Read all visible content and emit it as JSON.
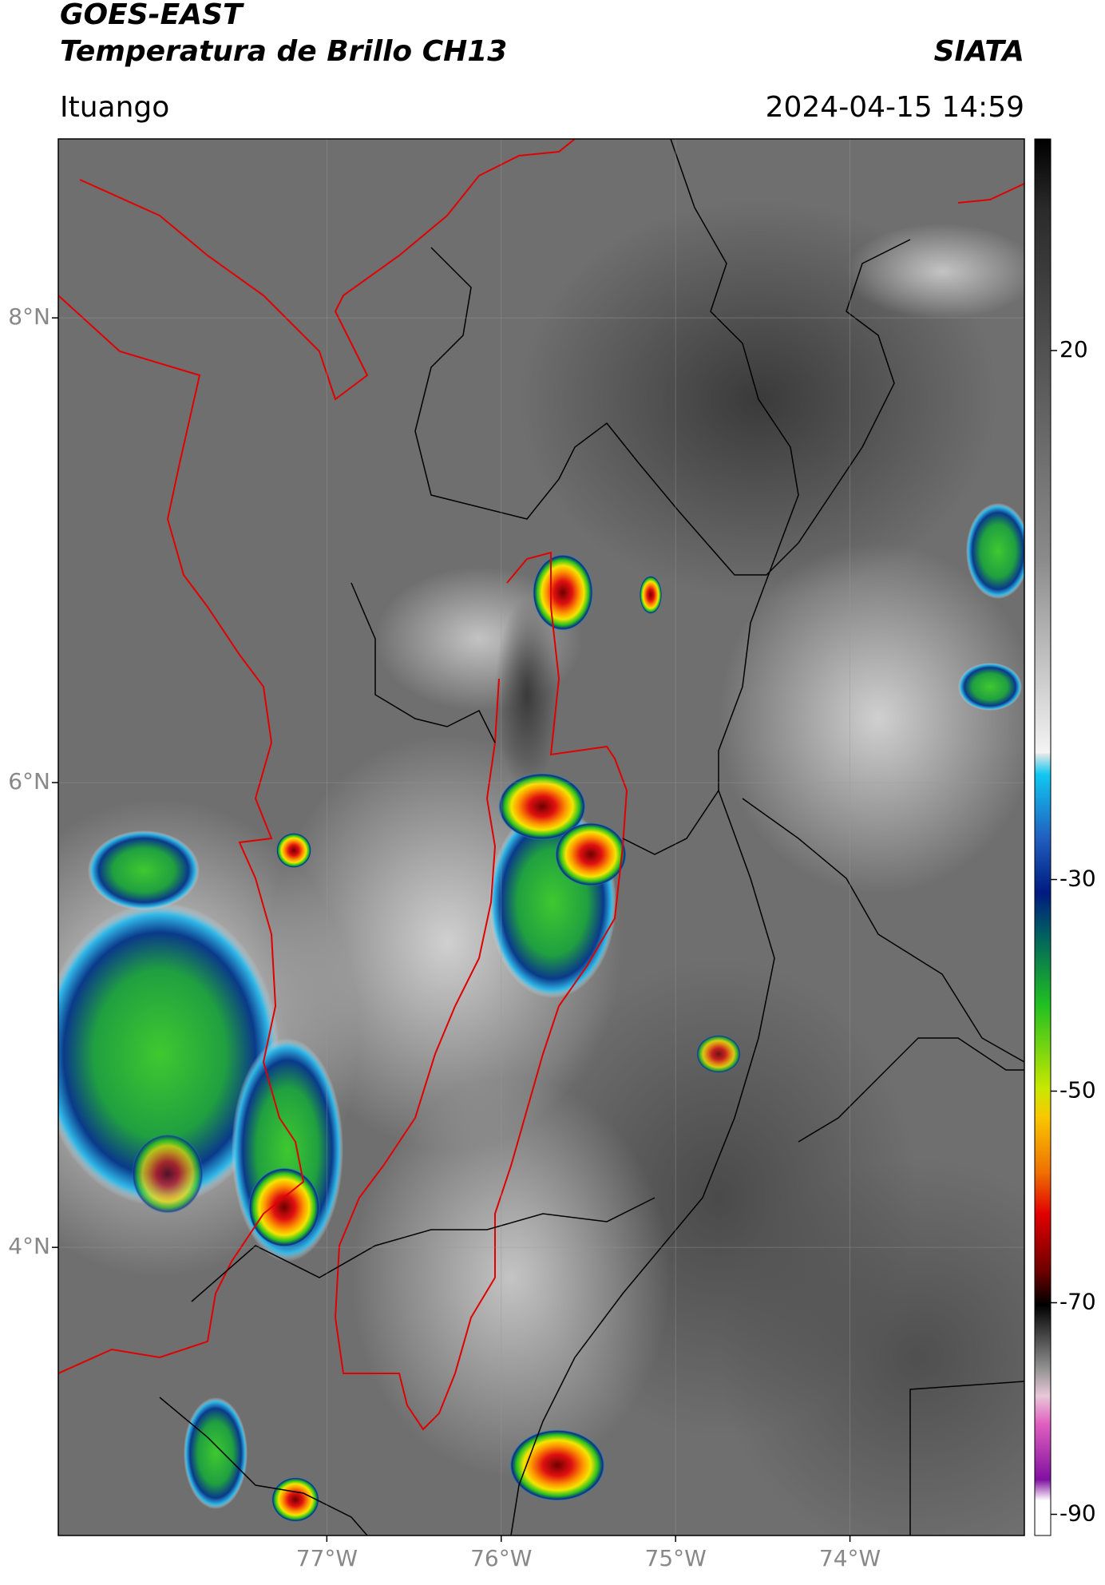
{
  "header": {
    "title": "GOES-EAST",
    "subtitle": "Temperatura de Brillo CH13",
    "source": "SIATA",
    "location": "Ituango",
    "timestamp": "2024-04-15 14:59"
  },
  "map": {
    "xlim": [
      -78.54,
      -73.0
    ],
    "ylim": [
      2.76,
      8.77
    ],
    "xticks": [
      {
        "value": -77,
        "label": "77°W"
      },
      {
        "value": -76,
        "label": "76°W"
      },
      {
        "value": -75,
        "label": "75°W"
      },
      {
        "value": -74,
        "label": "74°W"
      }
    ],
    "yticks": [
      {
        "value": 8,
        "label": "8°N"
      },
      {
        "value": 6,
        "label": "6°N"
      },
      {
        "value": 4,
        "label": "4°N"
      }
    ],
    "grid": true
  },
  "colorbar": {
    "lim": [
      -92,
      40
    ],
    "ticks": [
      20,
      -30,
      -50,
      -70,
      -90
    ]
  }
}
